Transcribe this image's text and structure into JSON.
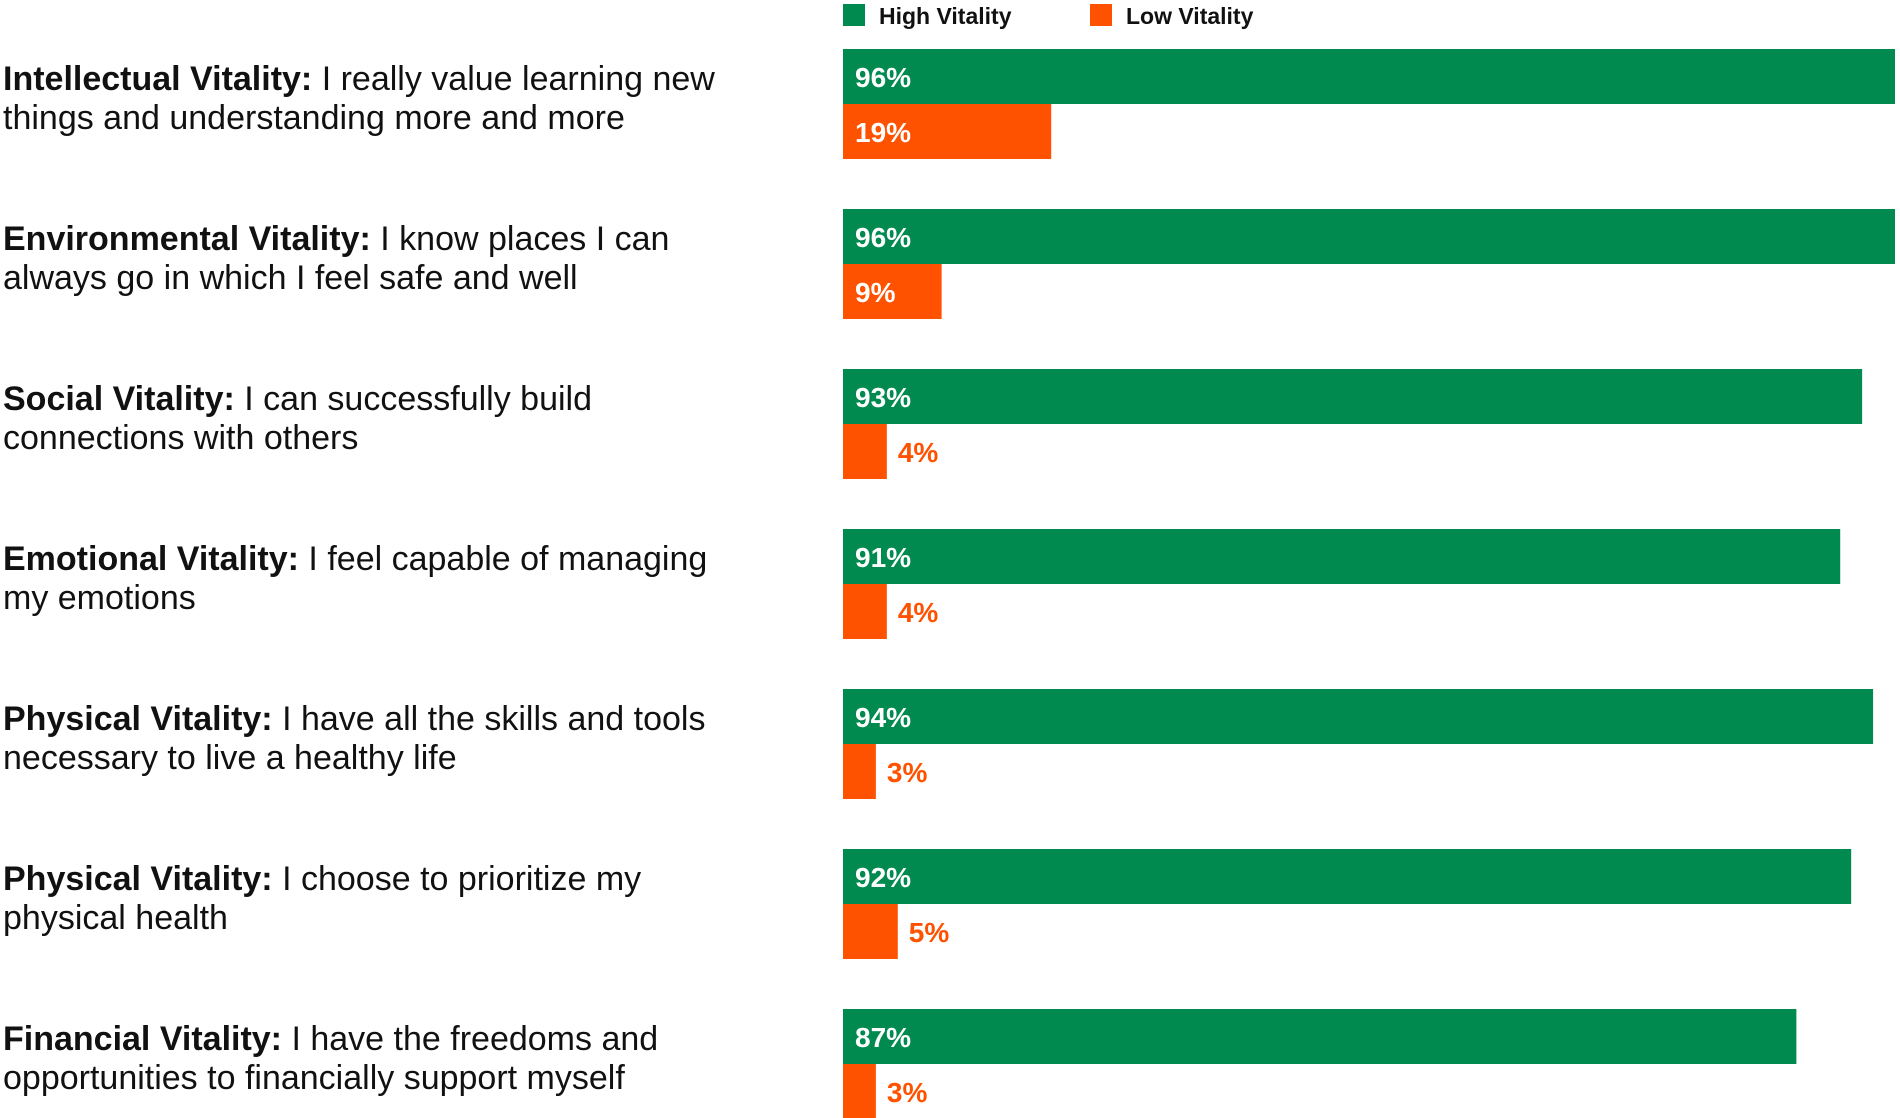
{
  "chart_data": {
    "type": "bar",
    "orientation": "horizontal",
    "title": "",
    "xlabel": "",
    "ylabel": "",
    "xlim": [
      0,
      96
    ],
    "grid": false,
    "legend_position": "top",
    "value_suffix": "%",
    "colors": {
      "high": "#008a4f",
      "low": "#ff5200"
    },
    "categories": [
      {
        "name": "Intellectual Vitality:",
        "statement": " I really value learning new things and understanding more and more"
      },
      {
        "name": "Environmental Vitality:",
        "statement": " I know places I can always go in which I feel safe and well"
      },
      {
        "name": "Social Vitality:",
        "statement": " I can successfully build connections with others"
      },
      {
        "name": "Emotional Vitality:",
        "statement": " I feel capable of managing my emotions"
      },
      {
        "name": "Physical Vitality:",
        "statement": " I have all the skills and tools necessary to live a healthy life"
      },
      {
        "name": "Physical Vitality:",
        "statement": " I choose to prioritize my physical health"
      },
      {
        "name": "Financial Vitality:",
        "statement": " I have the freedoms and opportunities to financially support myself"
      }
    ],
    "series": [
      {
        "key": "high",
        "name": "High Vitality",
        "values": [
          96,
          96,
          93,
          91,
          94,
          92,
          87
        ]
      },
      {
        "key": "low",
        "name": "Low Vitality",
        "values": [
          19,
          9,
          4,
          4,
          3,
          5,
          3
        ]
      }
    ]
  }
}
